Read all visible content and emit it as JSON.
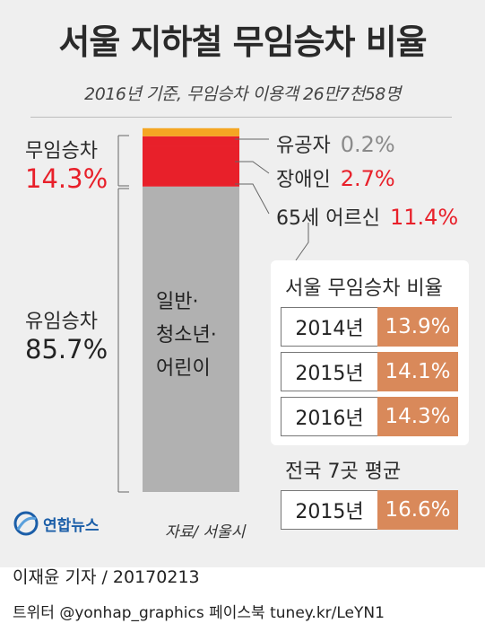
{
  "title": "서울 지하철 무임승차 비율",
  "subtitle": "2016년 기준, 무임승차 이용객 26만7천58명",
  "chart_data": [
    {
      "type": "bar",
      "stacked": true,
      "series": [
        {
          "name": "일반·청소년·어린이",
          "value": 85.7,
          "color": "#b1b1b1"
        },
        {
          "name": "65세 어르신",
          "value": 11.4,
          "color": "#e8202a"
        },
        {
          "name": "장애인",
          "value": 2.7,
          "color": "#e8202a"
        },
        {
          "name": "유공자",
          "value": 0.2,
          "color": "#f5a623"
        }
      ],
      "groups": [
        {
          "label": "무임승차",
          "value": "14.3%"
        },
        {
          "label": "유임승차",
          "value": "85.7%"
        }
      ],
      "callouts": [
        {
          "label": "유공자",
          "value": "0.2%"
        },
        {
          "label": "장애인",
          "value": "2.7%"
        },
        {
          "label": "65세 어르신",
          "value": "11.4%"
        }
      ],
      "bar_text": [
        "일반·",
        "청소년·",
        "어린이"
      ]
    },
    {
      "type": "table",
      "title": "서울 무임승차 비율",
      "rows": [
        {
          "year": "2014년",
          "value": "13.9%"
        },
        {
          "year": "2015년",
          "value": "14.1%"
        },
        {
          "year": "2016년",
          "value": "14.3%"
        }
      ]
    },
    {
      "type": "table",
      "title": "전국 7곳 평균",
      "rows": [
        {
          "year": "2015년",
          "value": "16.6%"
        }
      ]
    }
  ],
  "labels": {
    "free_label": "무임승차",
    "free_value": "14.3%",
    "paid_label": "유임승차",
    "paid_value": "85.7%",
    "c1_label": "유공자",
    "c1_value": "0.2%",
    "c2_label": "장애인",
    "c2_value": "2.7%",
    "c3_label": "65세 어르신",
    "c3_value": "11.4%",
    "bar_line1": "일반·",
    "bar_line2": "청소년·",
    "bar_line3": "어린이"
  },
  "table": {
    "title": "서울 무임승차 비율",
    "rows": [
      {
        "year": "2014년",
        "value": "13.9%"
      },
      {
        "year": "2015년",
        "value": "14.1%"
      },
      {
        "year": "2016년",
        "value": "14.3%"
      }
    ],
    "national_title": "전국 7곳 평균",
    "national_year": "2015년",
    "national_value": "16.6%"
  },
  "source": "자료/ 서울시",
  "logo": "연합뉴스",
  "byline": "이재윤 기자 / 20170213",
  "social": "트위터 @yonhap_graphics  페이스북 tuney.kr/LeYN1",
  "colors": {
    "paid": "#b1b1b1",
    "free_red": "#e8202a",
    "merit_orange": "#f5a623",
    "table_accent": "#d9895a",
    "panel": "#efefef"
  }
}
